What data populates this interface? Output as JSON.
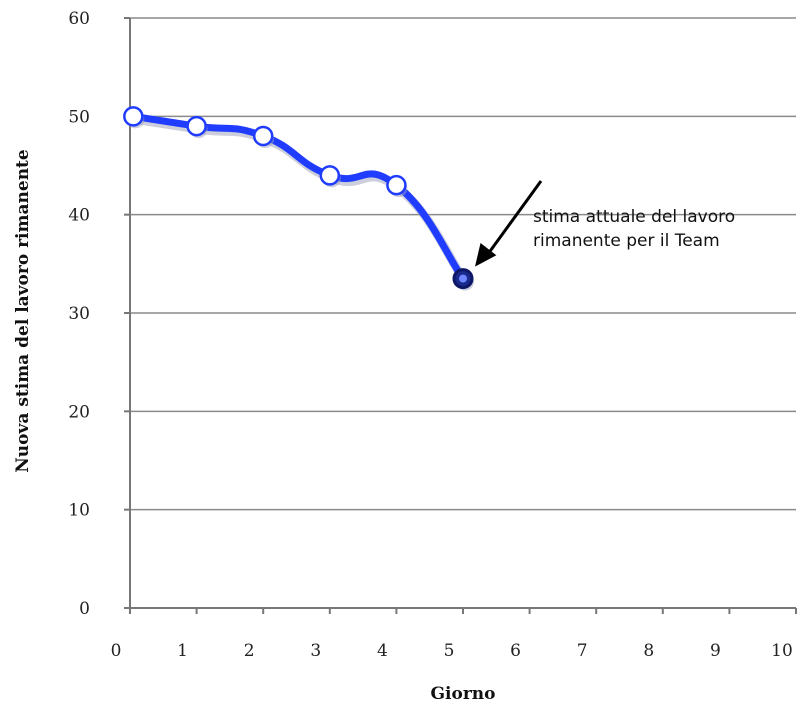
{
  "chart_data": {
    "type": "line",
    "xlabel": "Giorno",
    "ylabel": "Nuova stima del lavoro rimanente",
    "xlim": [
      0,
      10
    ],
    "ylim": [
      0,
      60
    ],
    "x_ticks": [
      "0",
      "1",
      "2",
      "3",
      "4",
      "5",
      "6",
      "7",
      "8",
      "9",
      "10"
    ],
    "y_ticks": [
      "0",
      "10",
      "20",
      "30",
      "40",
      "50",
      "60"
    ],
    "grid": "horizontal",
    "series": [
      {
        "x": [
          0.05,
          1,
          2,
          3,
          4,
          5
        ],
        "y": [
          50,
          49,
          48,
          44,
          43,
          33.5
        ],
        "color": "#1f3cff",
        "marker_fill": "#ffffff",
        "last_marker_fill": "#1a2a8c"
      }
    ],
    "annotation": {
      "lines": [
        "stima attuale del lavoro",
        "rimanente per il Team"
      ],
      "points_to": {
        "x": 5,
        "y": 33.5
      }
    }
  }
}
